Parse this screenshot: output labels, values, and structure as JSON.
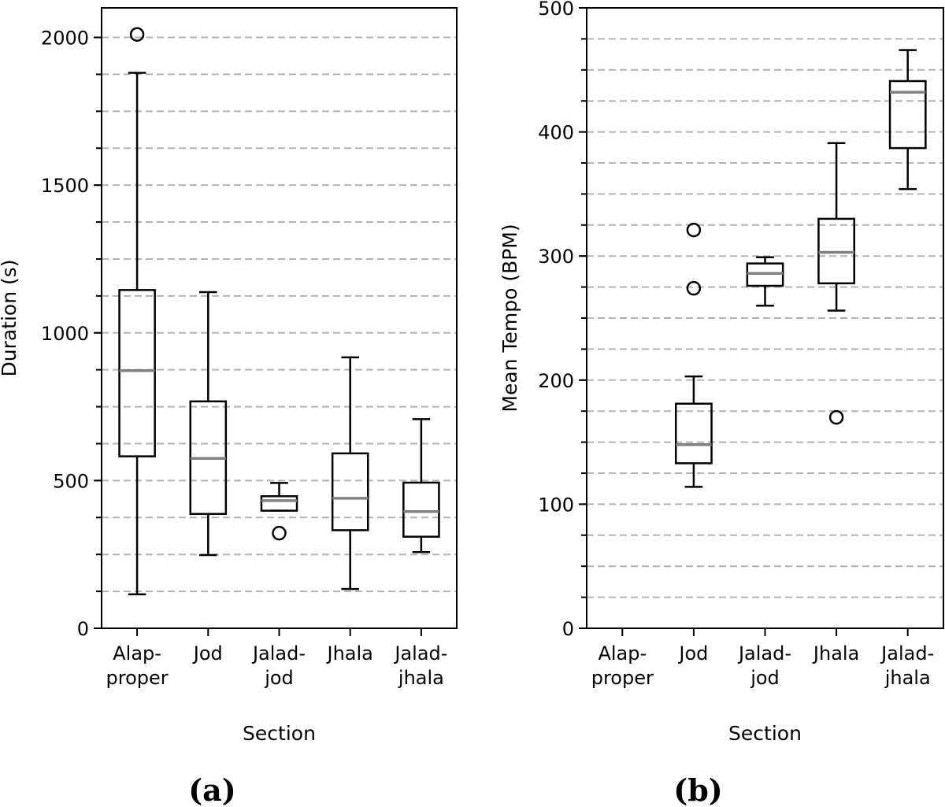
{
  "chart_data": [
    {
      "type": "box",
      "panel_label": "(a)",
      "xlabel": "Section",
      "ylabel": "Duration (s)",
      "ylim": [
        0,
        2100
      ],
      "yticks": [
        0,
        500,
        1000,
        1500,
        2000
      ],
      "gridlines": [
        125,
        250,
        375,
        500,
        625,
        750,
        875,
        1000,
        1125,
        1250,
        1375,
        1500,
        1625,
        1750,
        1875,
        2000
      ],
      "categories": [
        [
          "Alap-",
          "proper"
        ],
        [
          "Jod"
        ],
        [
          "Jalad-",
          "jod"
        ],
        [
          "Jhala"
        ],
        [
          "Jalad-",
          "jhala"
        ]
      ],
      "boxes": [
        {
          "whislo": 115,
          "q1": 582,
          "med": 872,
          "q3": 1145,
          "whishi": 1880,
          "fliers": [
            2010
          ]
        },
        {
          "whislo": 248,
          "q1": 387,
          "med": 575,
          "q3": 768,
          "whishi": 1138,
          "fliers": []
        },
        {
          "whislo": 398,
          "q1": 398,
          "med": 432,
          "q3": 447,
          "whishi": 492,
          "fliers": [
            322
          ]
        },
        {
          "whislo": 133,
          "q1": 332,
          "med": 440,
          "q3": 592,
          "whishi": 917,
          "fliers": []
        },
        {
          "whislo": 258,
          "q1": 310,
          "med": 395,
          "q3": 493,
          "whishi": 708,
          "fliers": []
        }
      ]
    },
    {
      "type": "box",
      "panel_label": "(b)",
      "xlabel": "Section",
      "ylabel": "Mean Tempo (BPM)",
      "ylim": [
        0,
        500
      ],
      "yticks": [
        0,
        100,
        200,
        300,
        400,
        500
      ],
      "gridlines": [
        25,
        50,
        75,
        100,
        125,
        150,
        175,
        200,
        225,
        250,
        275,
        300,
        325,
        350,
        375,
        400,
        425,
        450,
        475
      ],
      "categories": [
        [
          "Alap-",
          "proper"
        ],
        [
          "Jod"
        ],
        [
          "Jalad-",
          "jod"
        ],
        [
          "Jhala"
        ],
        [
          "Jalad-",
          "jhala"
        ]
      ],
      "boxes": [
        null,
        {
          "whislo": 114,
          "q1": 133,
          "med": 148,
          "q3": 181,
          "whishi": 203,
          "fliers": [
            274,
            321
          ]
        },
        {
          "whislo": 260,
          "q1": 276,
          "med": 286,
          "q3": 294,
          "whishi": 299,
          "fliers": []
        },
        {
          "whislo": 256,
          "q1": 278,
          "med": 303,
          "q3": 330,
          "whishi": 391,
          "fliers": [
            170
          ]
        },
        {
          "whislo": 354,
          "q1": 387,
          "med": 432,
          "q3": 441,
          "whishi": 466,
          "fliers": []
        }
      ]
    }
  ]
}
